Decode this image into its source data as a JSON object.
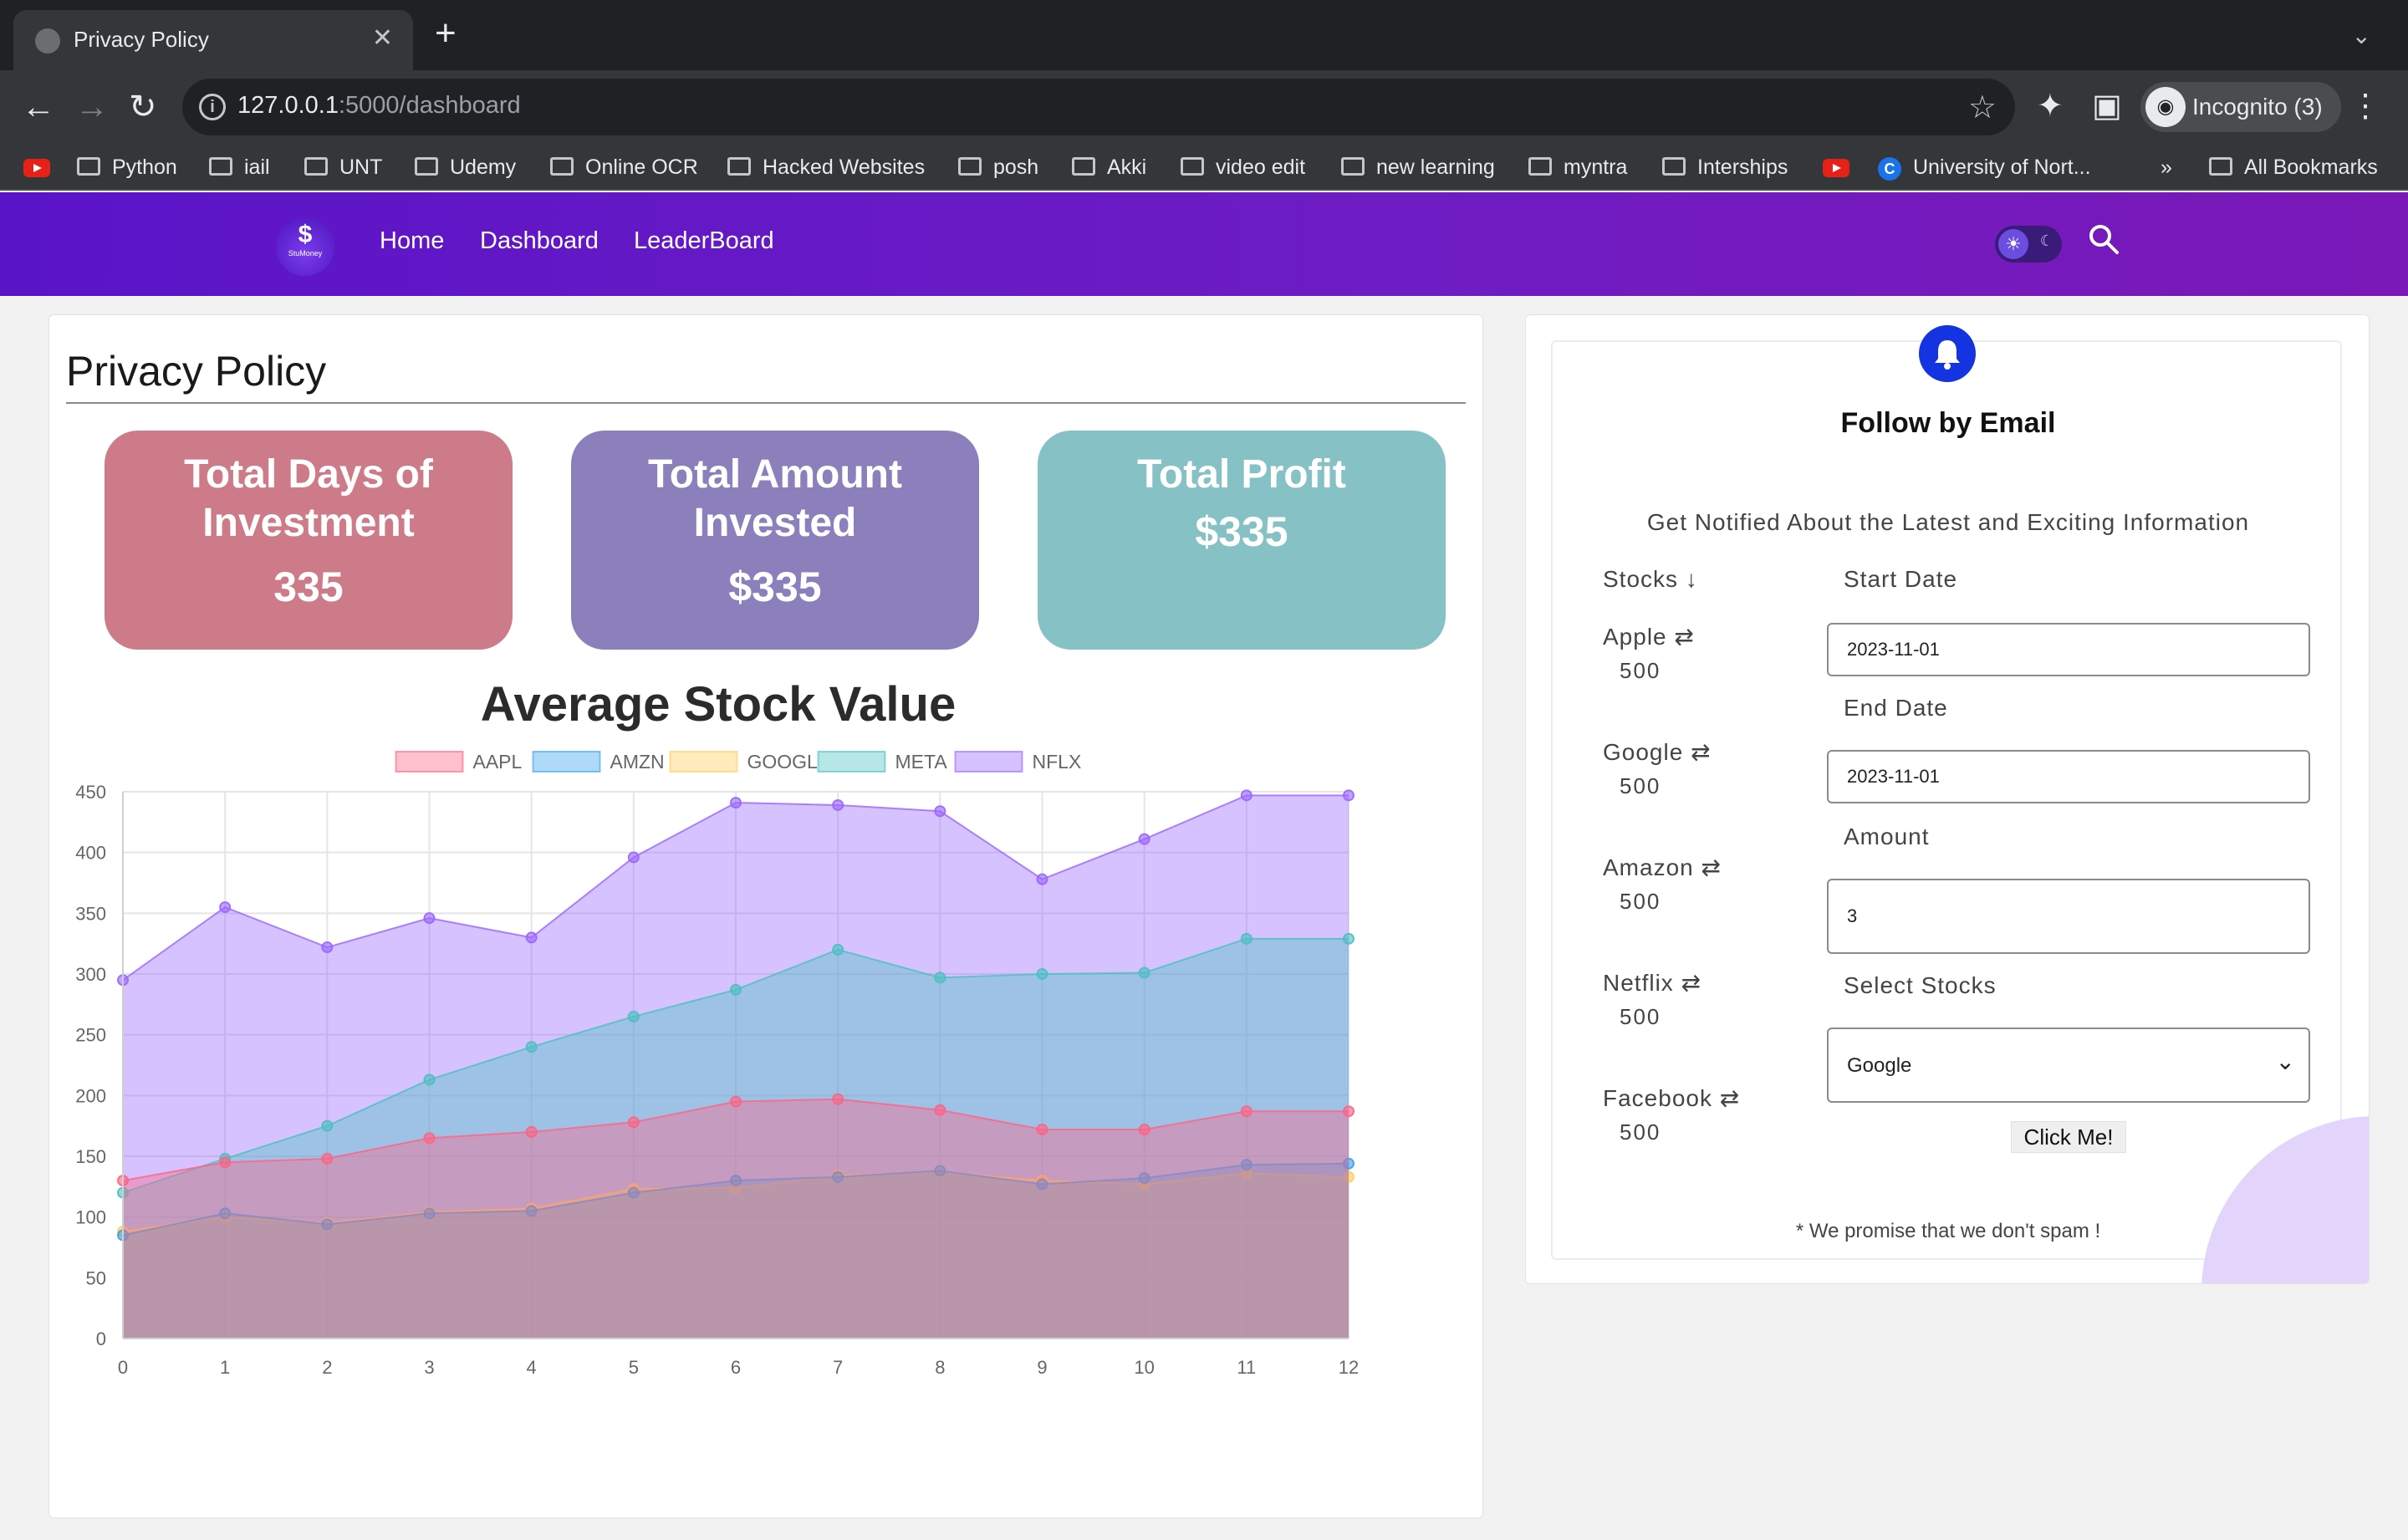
{
  "browser": {
    "tab_title": "Privacy Policy",
    "url_host": "127.0.0.1",
    "url_path": ":5000/dashboard",
    "profile_label": "Incognito (3)",
    "bookmarks": [
      "Python",
      "iail",
      "UNT",
      "Udemy",
      "Online OCR",
      "Hacked Websites",
      "posh",
      "Akki",
      "video edit",
      "new learning",
      "myntra",
      "Interships",
      "University of Nort...",
      "All Bookmarks"
    ],
    "overflow_label": "»"
  },
  "app": {
    "logo_symbol": "$",
    "logo_text": "StuMoney",
    "nav": [
      "Home",
      "Dashboard",
      "LeaderBoard"
    ]
  },
  "main": {
    "title": "Privacy Policy",
    "stats": [
      {
        "label": "Total Days of Investment",
        "value": "335",
        "color": "#cd7b88"
      },
      {
        "label": "Total Amount Invested",
        "value": "$335",
        "color": "#8b80bb"
      },
      {
        "label": "Total Profit",
        "value": "$335",
        "color": "#86c1c5"
      }
    ]
  },
  "chart_data": {
    "type": "area",
    "title": "Average Stock Value",
    "x": [
      0,
      1,
      2,
      3,
      4,
      5,
      6,
      7,
      8,
      9,
      10,
      11,
      12
    ],
    "ylim": [
      0,
      450
    ],
    "yticks": [
      0,
      50,
      100,
      150,
      200,
      250,
      300,
      350,
      400,
      450
    ],
    "grid": true,
    "legend_position": "top-center",
    "series": [
      {
        "name": "AAPL",
        "color": "#ff6384",
        "values": [
          130,
          145,
          148,
          165,
          170,
          178,
          195,
          197,
          188,
          172,
          172,
          187,
          187
        ]
      },
      {
        "name": "AMZN",
        "color": "#36a2eb",
        "values": [
          85,
          103,
          94,
          103,
          105,
          120,
          130,
          133,
          138,
          127,
          132,
          143,
          144
        ]
      },
      {
        "name": "GOOGL",
        "color": "#ffcd56",
        "values": [
          88,
          100,
          95,
          104,
          107,
          123,
          124,
          134,
          137,
          130,
          127,
          136,
          133
        ]
      },
      {
        "name": "META",
        "color": "#4bc0c0",
        "values": [
          120,
          148,
          175,
          213,
          240,
          265,
          287,
          320,
          297,
          300,
          301,
          329,
          329
        ]
      },
      {
        "name": "NFLX",
        "color": "#9966ff",
        "values": [
          295,
          355,
          322,
          346,
          330,
          396,
          441,
          439,
          434,
          378,
          411,
          447,
          447
        ]
      }
    ]
  },
  "side": {
    "heading": "Follow by Email",
    "subtitle": "Get Notified About the Latest and Exciting Information",
    "stocks_header": "Stocks ↓",
    "stocks": [
      {
        "name": "Apple ⇄",
        "value": "500"
      },
      {
        "name": "Google ⇄",
        "value": "500"
      },
      {
        "name": "Amazon ⇄",
        "value": "500"
      },
      {
        "name": "Netflix ⇄",
        "value": "500"
      },
      {
        "name": "Facebook ⇄",
        "value": "500"
      }
    ],
    "start_date_label": "Start Date",
    "start_date_value": "2023-11-01",
    "end_date_label": "End Date",
    "end_date_value": "2023-11-01",
    "amount_label": "Amount",
    "amount_value": "3",
    "select_label": "Select Stocks",
    "select_value": "Google",
    "button_label": "Click Me!",
    "footer_note": "* We promise that we don't spam !"
  }
}
